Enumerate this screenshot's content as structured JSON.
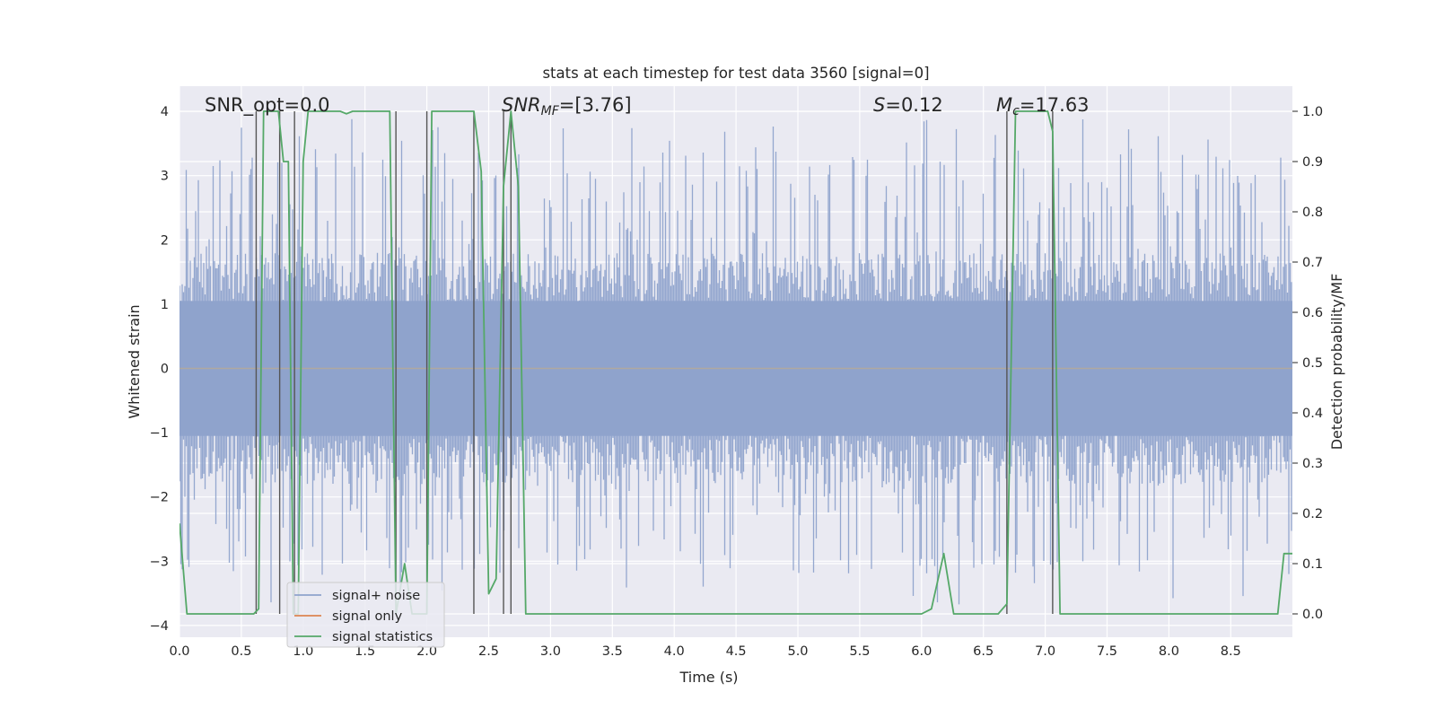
{
  "chart_data": {
    "type": "line",
    "title": "stats at each timestep for test data 3560 [signal=0]",
    "xlabel": "Time (s)",
    "ylabel_left": "Whitened strain",
    "ylabel_right": "Detection probability/MF",
    "xlim": [
      0.0,
      9.0
    ],
    "ylim_left": [
      -4.0,
      4.0
    ],
    "ylim_right": [
      0.0,
      1.0
    ],
    "xticks": [
      "0.0",
      "0.5",
      "1.0",
      "1.5",
      "2.0",
      "2.5",
      "3.0",
      "3.5",
      "4.0",
      "4.5",
      "5.0",
      "5.5",
      "6.0",
      "6.5",
      "7.0",
      "7.5",
      "8.0",
      "8.5"
    ],
    "yticks_left": [
      "−4",
      "−3",
      "−2",
      "−1",
      "0",
      "1",
      "2",
      "3",
      "4"
    ],
    "yticks_right": [
      "0.0",
      "0.1",
      "0.2",
      "0.3",
      "0.4",
      "0.5",
      "0.6",
      "0.7",
      "0.8",
      "0.9",
      "1.0"
    ],
    "grid": true,
    "legend_location": "lower-left",
    "annotations": {
      "snr_opt": "SNR_opt=0.0",
      "snr_mf_main": "SNR",
      "snr_mf_sub": "MF",
      "snr_mf_value": "=[3.76]",
      "s_symbol": "S",
      "s_value": "=0.12",
      "mc_symbol": "M",
      "mc_sub": "c",
      "mc_value": "=17.63"
    },
    "series": [
      {
        "name": "signal+ noise",
        "color": "#8fa3cc",
        "axis": "left",
        "description_values": {
          "typical_range": [
            -1.5,
            1.7
          ],
          "peak_max": 4.0,
          "peak_min": -3.8
        }
      },
      {
        "name": "signal only",
        "color": "#dd8452",
        "axis": "left",
        "values_constant": 0.0
      },
      {
        "name": "signal statistics",
        "color": "#55a868",
        "axis": "right",
        "x": [
          0.0,
          0.06,
          0.12,
          0.2,
          0.3,
          0.4,
          0.5,
          0.55,
          0.6,
          0.64,
          0.68,
          0.74,
          0.8,
          0.84,
          0.88,
          0.92,
          0.96,
          1.0,
          1.04,
          1.1,
          1.2,
          1.3,
          1.35,
          1.4,
          1.5,
          1.6,
          1.7,
          1.75,
          1.82,
          1.88,
          1.95,
          2.0,
          2.04,
          2.1,
          2.2,
          2.3,
          2.38,
          2.44,
          2.5,
          2.56,
          2.62,
          2.68,
          2.74,
          2.8,
          2.9,
          3.0,
          4.0,
          5.0,
          6.0,
          6.08,
          6.18,
          6.26,
          6.36,
          6.46,
          6.62,
          6.69,
          6.76,
          6.86,
          6.96,
          7.02,
          7.06,
          7.12,
          7.2,
          7.5,
          8.0,
          8.5,
          8.88,
          8.93,
          9.0
        ],
        "values": [
          0.18,
          0.0,
          0.0,
          0.0,
          0.0,
          0.0,
          0.0,
          0.0,
          0.0,
          0.01,
          1.0,
          1.0,
          1.0,
          0.9,
          0.9,
          0.0,
          0.0,
          0.9,
          1.0,
          1.0,
          1.0,
          1.0,
          0.995,
          1.0,
          1.0,
          1.0,
          1.0,
          0.0,
          0.1,
          0.0,
          0.0,
          0.0,
          1.0,
          1.0,
          1.0,
          1.0,
          1.0,
          0.88,
          0.04,
          0.07,
          0.85,
          1.0,
          0.85,
          0.0,
          0.0,
          0.0,
          0.0,
          0.0,
          0.0,
          0.01,
          0.12,
          0.0,
          0.0,
          0.0,
          0.0,
          0.02,
          1.0,
          1.0,
          1.0,
          1.0,
          0.96,
          0.0,
          0.0,
          0.0,
          0.0,
          0.0,
          0.0,
          0.12,
          0.12
        ]
      }
    ],
    "vertical_markers_x": [
      0.62,
      0.81,
      0.93,
      1.75,
      2.0,
      2.38,
      2.62,
      2.68,
      6.69,
      7.06
    ]
  },
  "legend": {
    "items": [
      {
        "label": "signal+ noise",
        "color": "#8fa3cc"
      },
      {
        "label": "signal only",
        "color": "#dd8452"
      },
      {
        "label": "signal statistics",
        "color": "#55a868"
      }
    ]
  },
  "colors": {
    "axes_bg": "#eaeaf2",
    "grid": "#ffffff",
    "noise": "#8fa3cc",
    "stats": "#55a868",
    "markers": "#555555"
  }
}
